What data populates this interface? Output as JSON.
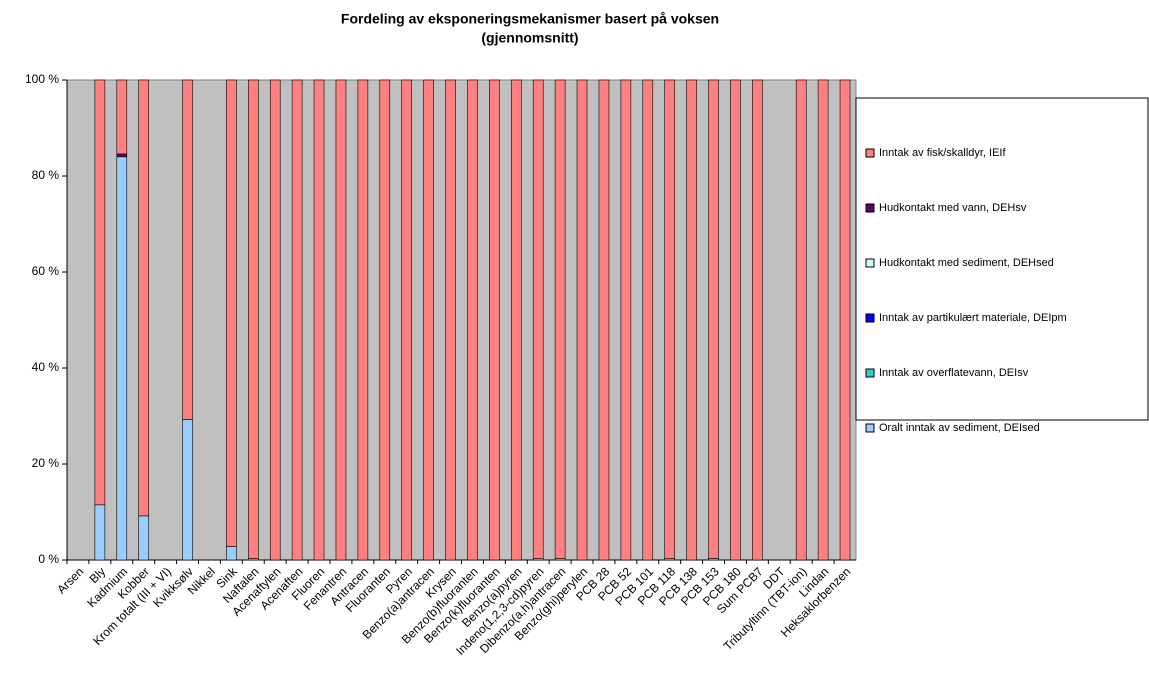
{
  "chart_data": {
    "type": "stacked_bar",
    "title": "Fordeling av eksponeringsmekanismer basert på voksen",
    "subtitle": "(gjennomsnitt)",
    "categories": [
      "Arsen",
      "Bly",
      "Kadmium",
      "Kobber",
      "Krom totalt (III + VI)",
      "Kvikksølv",
      "Nikkel",
      "Sink",
      "Naftalen",
      "Acenaftylen",
      "Acenaften",
      "Fluoren",
      "Fenantren",
      "Antracen",
      "Fluoranten",
      "Pyren",
      "Benzo(a)antracen",
      "Krysen",
      "Benzo(b)fluoranten",
      "Benzo(k)fluoranten",
      "Benzo(a)pyren",
      "Indeno(1,2,3-cd)pyren",
      "Dibenzo(a,h)antracen",
      "Benzo(ghi)perylen",
      "PCB 28",
      "PCB 52",
      "PCB 101",
      "PCB 118",
      "PCB 138",
      "PCB 153",
      "PCB 180",
      "Sum PCB7",
      "DDT",
      "Tributyltinn (TBT-ion)",
      "Lindan",
      "Heksaklorbenzen"
    ],
    "series": [
      {
        "name": "Oralt inntak av sediment, DEIsed",
        "color": "#99ccff",
        "values": [
          null,
          11.5,
          84,
          9.2,
          null,
          29.3,
          null,
          2.8,
          0.3,
          0,
          0,
          0,
          0,
          0,
          0,
          0,
          0,
          0,
          0,
          0,
          0,
          0.3,
          0.3,
          0,
          0,
          0,
          0,
          0.3,
          0,
          0.3,
          0,
          0,
          null,
          0,
          0,
          0
        ]
      },
      {
        "name": "Inntak av overflatevann, DEIsv",
        "color": "#33cccc",
        "values": [
          null,
          0,
          0,
          0,
          null,
          0,
          null,
          0,
          0,
          0,
          0,
          0,
          0,
          0,
          0,
          0,
          0,
          0,
          0,
          0,
          0,
          0,
          0,
          0,
          0,
          0,
          0,
          0,
          0,
          0,
          0,
          0,
          null,
          0,
          0,
          0
        ]
      },
      {
        "name": "Inntak av partikulært materiale, DEIpm",
        "color": "#0000ff",
        "values": [
          null,
          0,
          0,
          0,
          null,
          0,
          null,
          0,
          0,
          0,
          0,
          0,
          0,
          0,
          0,
          0,
          0,
          0,
          0,
          0,
          0,
          0,
          0,
          0,
          0,
          0,
          0,
          0,
          0,
          0,
          0,
          0,
          null,
          0,
          0,
          0
        ]
      },
      {
        "name": "Hudkontakt med sediment, DEHsed",
        "color": "#ccffff",
        "values": [
          null,
          0,
          0,
          0,
          null,
          0,
          null,
          0,
          0,
          0,
          0,
          0,
          0,
          0,
          0,
          0,
          0,
          0,
          0,
          0,
          0,
          0,
          0,
          0,
          0,
          0,
          0,
          0,
          0,
          0,
          0,
          0,
          null,
          0,
          0,
          0
        ]
      },
      {
        "name": "Hudkontakt med vann, DEHsv",
        "color": "#660066",
        "values": [
          null,
          0,
          0.6,
          0,
          null,
          0,
          null,
          0,
          0,
          0,
          0,
          0,
          0,
          0,
          0,
          0,
          0,
          0,
          0,
          0,
          0,
          0,
          0,
          0,
          0,
          0,
          0,
          0,
          0,
          0,
          0,
          0,
          null,
          0,
          0,
          0
        ]
      },
      {
        "name": "Inntak av fisk/skalldyr, IEIf",
        "color": "#ff8080",
        "values": [
          null,
          88.5,
          15.4,
          90.8,
          null,
          70.7,
          null,
          97.2,
          99.7,
          100,
          100,
          100,
          100,
          100,
          100,
          100,
          100,
          100,
          100,
          100,
          100,
          99.7,
          99.7,
          100,
          100,
          100,
          100,
          99.7,
          100,
          99.7,
          100,
          100,
          null,
          100,
          100,
          100
        ]
      }
    ],
    "ylim": [
      0,
      100
    ],
    "yticks": [
      {
        "value": 0,
        "label": "0 %"
      },
      {
        "value": 20,
        "label": "20 %"
      },
      {
        "value": 40,
        "label": "40 %"
      },
      {
        "value": 60,
        "label": "60 %"
      },
      {
        "value": 80,
        "label": "80 %"
      },
      {
        "value": 100,
        "label": "100 %"
      }
    ],
    "plot_background": "#c0c0c0"
  }
}
